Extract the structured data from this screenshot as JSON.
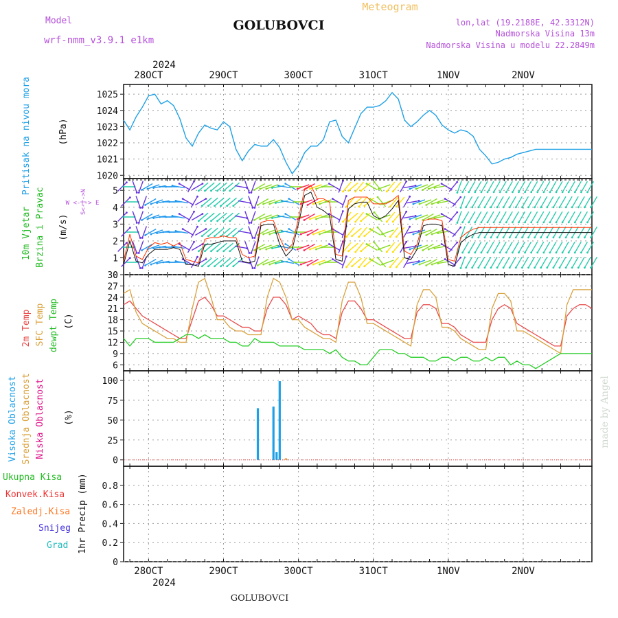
{
  "header": {
    "model_label": "Model",
    "model_name": "wrf-nmm_v3.9.1 e1km",
    "station": "GOLUBOVCI",
    "product": "Meteogram",
    "lonlat": "lon,lat (19.2188E, 42.3312N)",
    "altitude": "Nadmorska Visina 13m",
    "model_altitude": "Nadmorska Visina u modelu 22.2849m"
  },
  "footer": {
    "station": "GOLUBOVCI",
    "credit": "made by Angel"
  },
  "colors": {
    "pressure": "#1ea0e6",
    "wind_speed": "#111111",
    "wind_gust": "#ff3300",
    "temp2m": "#e84a4a",
    "sfc_temp": "#d9a13c",
    "dewpt": "#22cc22",
    "high_cloud": "#1ea0e6",
    "mid_cloud": "#e8a040",
    "low_cloud": "#dd1188",
    "total_rain": "#22bb22",
    "conv_rain": "#ee3333",
    "frz_rain": "#ff7722",
    "snow": "#4433dd",
    "hail": "#22bbbb",
    "model_label": "#b44fd9"
  },
  "time_axis": {
    "year": "2024",
    "days": [
      "28OCT",
      "29OCT",
      "30OCT",
      "31OCT",
      "1NOV",
      "2NOV"
    ],
    "range_hours": [
      -8,
      142
    ]
  },
  "panels": {
    "pressure": {
      "label": "Pritisak na nivou mora",
      "unit": "(hPa)"
    },
    "wind": {
      "label_1": "10m Vjetar",
      "label_2": "Brzina i Pravac",
      "unit": "(m/s)",
      "compass": "W <-|-> E",
      "compass_ns": "S<-|->N"
    },
    "temp": {
      "label_1": "2m Temp",
      "label_2": "SFC Temp",
      "label_3": "dewpt Temp",
      "unit": "(C)"
    },
    "cloud": {
      "label_1": "Visoka Oblacnost",
      "label_2": "Srednja Oblacnost",
      "label_3": "Niska Oblacnost",
      "unit": "(%)"
    },
    "precip": {
      "labels": [
        "Ukupna Kisa",
        "Konvek.Kisa",
        "Zaledj.Kisa",
        "Snijeg",
        "Grad"
      ],
      "axis_label": "1hr Precip (mm)"
    }
  },
  "chart_data": [
    {
      "type": "line",
      "title": "Pritisak na nivou mora",
      "ylabel": "(hPa)",
      "ylim": [
        1019.8,
        1025.6
      ],
      "yticks": [
        1020,
        1021,
        1022,
        1023,
        1024,
        1025
      ],
      "x": [
        -8,
        -6,
        -4,
        -2,
        0,
        2,
        4,
        6,
        8,
        10,
        12,
        14,
        16,
        18,
        20,
        22,
        24,
        26,
        28,
        30,
        32,
        34,
        36,
        38,
        40,
        42,
        44,
        46,
        48,
        50,
        52,
        54,
        56,
        58,
        60,
        62,
        64,
        66,
        68,
        70,
        72,
        74,
        76,
        78,
        80,
        82,
        84,
        86,
        88,
        90,
        92,
        94,
        96,
        98,
        100,
        102,
        104,
        106,
        108,
        110,
        112,
        114,
        116,
        118,
        120,
        122,
        124,
        126,
        128,
        130,
        132,
        134,
        136,
        138,
        140,
        142
      ],
      "series": [
        {
          "values": [
            1023.4,
            1022.8,
            1023.6,
            1024.2,
            1024.9,
            1025.0,
            1024.4,
            1024.6,
            1024.3,
            1023.5,
            1022.3,
            1021.8,
            1022.6,
            1023.1,
            1022.9,
            1022.8,
            1023.3,
            1023.0,
            1021.6,
            1020.9,
            1021.5,
            1021.9,
            1021.8,
            1021.8,
            1022.2,
            1021.7,
            1020.8,
            1020.1,
            1020.6,
            1021.4,
            1021.8,
            1021.8,
            1022.2,
            1023.3,
            1023.4,
            1022.4,
            1022.0,
            1022.9,
            1023.8,
            1024.2,
            1024.2,
            1024.3,
            1024.6,
            1025.1,
            1024.7,
            1023.4,
            1023.0,
            1023.3,
            1023.7,
            1024.0,
            1023.7,
            1023.1,
            1022.8,
            1022.6,
            1022.8,
            1022.7,
            1022.4,
            1021.6,
            1021.2,
            1020.7,
            1020.8,
            1021.0,
            1021.1,
            1021.3,
            1021.4,
            1021.5,
            1021.6,
            1021.6,
            1021.6,
            1021.6,
            1021.6,
            1021.6,
            1021.6,
            1021.6,
            1021.6,
            1021.6
          ]
        }
      ]
    },
    {
      "type": "line",
      "title": "10m Vjetar Brzina i Pravac",
      "ylabel": "(m/s)",
      "ylim": [
        0,
        5.7
      ],
      "yticks": [
        0,
        1,
        2,
        3,
        4,
        5
      ],
      "x": [
        -8,
        -6,
        -4,
        -2,
        0,
        2,
        4,
        6,
        8,
        10,
        12,
        14,
        16,
        18,
        20,
        22,
        24,
        26,
        28,
        30,
        32,
        34,
        36,
        38,
        40,
        42,
        44,
        46,
        48,
        50,
        52,
        54,
        56,
        58,
        60,
        62,
        64,
        66,
        68,
        70,
        72,
        74,
        76,
        78,
        80,
        82,
        84,
        86,
        88,
        90,
        92,
        94,
        96,
        98,
        100,
        102,
        104,
        106,
        108,
        110,
        112,
        114,
        116,
        118,
        120,
        122,
        124,
        126,
        128,
        130,
        132,
        134,
        136,
        138,
        140,
        142
      ],
      "series": [
        {
          "values": [
            0.6,
            2.0,
            0.8,
            0.7,
            1.2,
            1.5,
            1.5,
            1.5,
            1.6,
            1.5,
            0.6,
            0.6,
            0.5,
            1.8,
            1.8,
            1.9,
            2.0,
            2.0,
            2.0,
            0.8,
            0.7,
            0.8,
            2.9,
            3.0,
            3.0,
            1.8,
            1.1,
            1.5,
            3.0,
            4.7,
            4.9,
            4.0,
            3.8,
            3.5,
            0.9,
            0.8,
            3.9,
            4.2,
            4.3,
            4.3,
            3.5,
            3.3,
            3.5,
            3.9,
            4.4,
            1.0,
            0.9,
            1.5,
            2.9,
            3.0,
            3.0,
            2.9,
            0.6,
            0.5,
            1.9,
            2.2,
            2.4,
            2.5,
            2.5,
            2.5,
            2.5,
            2.5,
            2.5,
            2.5,
            2.5,
            2.5,
            2.5,
            2.5,
            2.5,
            2.5,
            2.5,
            2.5,
            2.5,
            2.5,
            2.5,
            2.5
          ]
        },
        {
          "values": [
            0.8,
            2.4,
            1.1,
            0.9,
            1.6,
            1.9,
            1.8,
            1.9,
            1.7,
            1.9,
            0.9,
            0.8,
            0.7,
            2.1,
            2.2,
            2.2,
            2.3,
            2.2,
            2.2,
            1.2,
            1.0,
            1.1,
            3.1,
            3.2,
            3.2,
            2.2,
            1.4,
            1.8,
            3.3,
            5.1,
            5.3,
            4.5,
            4.5,
            4.3,
            1.2,
            1.1,
            4.4,
            4.6,
            4.6,
            4.6,
            4.2,
            4.2,
            4.2,
            4.4,
            4.7,
            1.4,
            1.2,
            1.8,
            3.2,
            3.3,
            3.3,
            3.2,
            0.9,
            0.8,
            2.2,
            2.5,
            2.7,
            2.8,
            2.8,
            2.8,
            2.8,
            2.8,
            2.8,
            2.8,
            2.8,
            2.8,
            2.8,
            2.8,
            2.8,
            2.8,
            2.8,
            2.8,
            2.8,
            2.8,
            2.8,
            2.8
          ]
        }
      ],
      "wind_dir_deg": [
        45,
        90,
        160,
        200,
        240,
        250,
        260,
        270,
        270,
        280,
        300,
        30,
        60,
        230,
        230,
        230,
        230,
        230,
        230,
        100,
        160,
        200,
        240,
        250,
        250,
        260,
        280,
        300,
        270,
        250,
        240,
        250,
        250,
        270,
        300,
        20,
        220,
        230,
        220,
        230,
        300,
        320,
        250,
        220,
        220,
        30,
        80,
        250,
        250,
        240,
        250,
        260,
        300,
        40,
        200,
        210,
        210,
        210,
        210,
        210,
        210,
        210,
        210,
        210,
        210,
        210,
        210,
        210,
        210,
        210,
        210,
        210,
        210,
        210,
        210,
        210
      ]
    },
    {
      "type": "line",
      "title": "2m Temp / SFC Temp / dewpt Temp",
      "ylabel": "(C)",
      "ylim": [
        4.4,
        30
      ],
      "yticks": [
        6,
        9,
        12,
        15,
        18,
        21,
        24,
        27,
        30
      ],
      "x": [
        -8,
        -6,
        -4,
        -2,
        0,
        2,
        4,
        6,
        8,
        10,
        12,
        14,
        16,
        18,
        20,
        22,
        24,
        26,
        28,
        30,
        32,
        34,
        36,
        38,
        40,
        42,
        44,
        46,
        48,
        50,
        52,
        54,
        56,
        58,
        60,
        62,
        64,
        66,
        68,
        70,
        72,
        74,
        76,
        78,
        80,
        82,
        84,
        86,
        88,
        90,
        92,
        94,
        96,
        98,
        100,
        102,
        104,
        106,
        108,
        110,
        112,
        114,
        116,
        118,
        120,
        122,
        124,
        126,
        128,
        130,
        132,
        134,
        136,
        138,
        140,
        142
      ],
      "series": [
        {
          "name": "2m Temp",
          "values": [
            22,
            23,
            21,
            19,
            18,
            17,
            16,
            15,
            14,
            13,
            13,
            18,
            23,
            24,
            22,
            19,
            19,
            18,
            17,
            16,
            16,
            15,
            15,
            21,
            24,
            24,
            22,
            18,
            19,
            18,
            17,
            15,
            14,
            14,
            13,
            20,
            23,
            23,
            21,
            18,
            18,
            17,
            16,
            15,
            14,
            13,
            13,
            20,
            22,
            22,
            21,
            17,
            17,
            16,
            14,
            13,
            12,
            12,
            12,
            18,
            21,
            22,
            21,
            17,
            16,
            15,
            14,
            13,
            12,
            11,
            11,
            19,
            21,
            22,
            22,
            21
          ]
        },
        {
          "name": "SFC Temp",
          "values": [
            25,
            26,
            20,
            17,
            16,
            15,
            14,
            13,
            13,
            12,
            12,
            21,
            28,
            29,
            24,
            18,
            18,
            16,
            15,
            15,
            14,
            14,
            14,
            24,
            29,
            28,
            24,
            18,
            18,
            16,
            15,
            14,
            13,
            13,
            12,
            23,
            28,
            28,
            24,
            17,
            17,
            16,
            15,
            14,
            13,
            12,
            11,
            22,
            26,
            26,
            24,
            16,
            16,
            15,
            13,
            12,
            11,
            10,
            10,
            21,
            25,
            25,
            23,
            15,
            15,
            14,
            13,
            12,
            11,
            10,
            9,
            22,
            26,
            26,
            26,
            26
          ]
        },
        {
          "name": "dewpt Temp",
          "values": [
            13,
            11,
            13,
            13,
            13,
            12,
            12,
            12,
            12,
            13,
            14,
            14,
            13,
            14,
            13,
            13,
            13,
            12,
            12,
            11,
            11,
            13,
            12,
            12,
            12,
            11,
            11,
            11,
            11,
            10,
            10,
            10,
            10,
            9,
            10,
            8,
            7,
            7,
            6,
            6,
            8,
            10,
            10,
            10,
            9,
            9,
            8,
            8,
            8,
            7,
            7,
            8,
            8,
            7,
            8,
            8,
            7,
            7,
            8,
            7,
            8,
            8,
            6,
            7,
            6,
            6,
            5,
            6,
            7,
            8,
            9,
            9,
            9,
            9,
            9,
            9
          ]
        }
      ]
    },
    {
      "type": "bar",
      "title": "Visoka / Srednja / Niska Oblacnost",
      "ylabel": "(%)",
      "ylim": [
        -8,
        112
      ],
      "yticks": [
        0,
        25,
        50,
        75,
        100
      ],
      "series": [
        {
          "name": "Visoka Oblacnost",
          "x": [
            35,
            40,
            41,
            42
          ],
          "values": [
            65,
            67,
            10,
            99
          ]
        },
        {
          "name": "Srednja Oblacnost",
          "x": [
            44
          ],
          "values": [
            2
          ]
        },
        {
          "name": "Niska Oblacnost",
          "x": [],
          "values": []
        }
      ]
    },
    {
      "type": "bar",
      "title": "1hr Precip",
      "ylabel": "1hr Precip (mm)",
      "ylim": [
        0,
        1.0
      ],
      "yticks": [
        0,
        0.2,
        0.4,
        0.6,
        0.8
      ],
      "series": [
        {
          "name": "Ukupna Kisa",
          "x": [],
          "values": []
        }
      ]
    }
  ]
}
